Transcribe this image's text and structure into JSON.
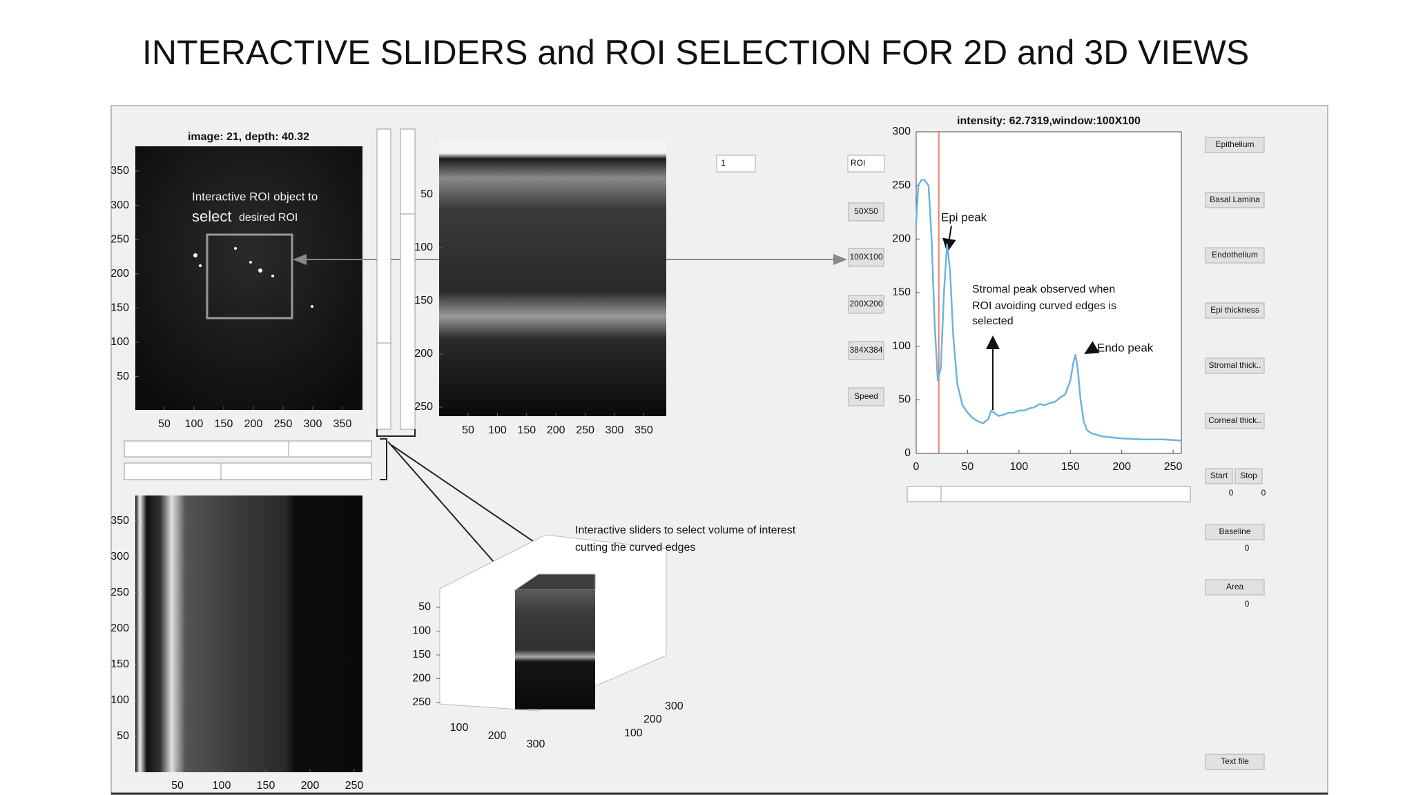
{
  "title": "INTERACTIVE SLIDERS and ROI SELECTION FOR 2D and 3D VIEWS",
  "image_panel": {
    "title": "image: 21, depth: 40.32",
    "yticks": [
      350,
      300,
      250,
      200,
      150,
      100,
      50
    ],
    "xticks": [
      50,
      100,
      150,
      200,
      250,
      300,
      350
    ],
    "roi_label": "Interactive ROI object to",
    "roi_label_big": "select",
    "roi_label_rest": "desired ROI"
  },
  "slice_panel": {
    "yticks": [
      50,
      100,
      150,
      200,
      250
    ],
    "xticks": [
      50,
      100,
      150,
      200,
      250,
      300,
      350
    ]
  },
  "side_panel": {
    "yticks": [
      350,
      300,
      250,
      200,
      150,
      100,
      50
    ],
    "xticks": [
      50,
      100,
      150,
      200,
      250
    ]
  },
  "volume_panel": {
    "annotation": [
      "Interactive sliders to select volume of interest",
      "cutting the curved edges"
    ],
    "zticks": [
      50,
      100,
      150,
      200,
      250
    ],
    "xticks": [
      100,
      200,
      300
    ],
    "yticks": [
      100,
      200,
      300
    ]
  },
  "controls": {
    "dropdown": "1",
    "roi_dropdown": "ROI",
    "buttons": [
      "50X50",
      "100X100",
      "200X200",
      "384X384",
      "Speed"
    ]
  },
  "side_buttons": {
    "layers": [
      "Epithelium",
      "Basal Lamina",
      "Endothelium",
      "Epi thickness",
      "Stromal thick..",
      "Corneal thick.."
    ],
    "start": "Start",
    "stop": "Stop",
    "start_value": 0,
    "stop_value": 0,
    "baseline": "Baseline",
    "baseline_value": 0,
    "area": "Area",
    "area_value": 0,
    "text_file": "Text file"
  },
  "chart_data": {
    "type": "line",
    "title": "intensity: 62.7319,window:100X100",
    "x": [
      0,
      2,
      5,
      8,
      12,
      15,
      18,
      21,
      24,
      27,
      30,
      33,
      36,
      40,
      45,
      50,
      55,
      60,
      65,
      70,
      73,
      76,
      80,
      85,
      90,
      95,
      100,
      105,
      110,
      115,
      120,
      125,
      130,
      135,
      140,
      145,
      150,
      153,
      155,
      157,
      160,
      163,
      166,
      170,
      180,
      190,
      200,
      220,
      240,
      258
    ],
    "values": [
      215,
      250,
      255,
      255,
      250,
      200,
      120,
      68,
      80,
      150,
      195,
      170,
      110,
      65,
      45,
      38,
      33,
      30,
      28,
      32,
      40,
      38,
      35,
      36,
      38,
      38,
      40,
      40,
      42,
      43,
      46,
      45,
      47,
      48,
      52,
      55,
      68,
      85,
      92,
      80,
      50,
      30,
      22,
      19,
      16,
      15,
      14,
      13,
      13,
      12
    ],
    "color": "#6db3e0",
    "marker_x": 22,
    "marker_color": "#e8826a",
    "xlim": [
      0,
      258
    ],
    "ylim": [
      0,
      300
    ],
    "xticks": [
      0,
      50,
      100,
      150,
      200,
      250
    ],
    "yticks": [
      0,
      50,
      100,
      150,
      200,
      250,
      300
    ],
    "annotations": {
      "epi": "Epi peak",
      "stromal": [
        "Stromal peak observed when",
        "ROI avoiding curved edges is",
        "selected"
      ],
      "endo": "Endo peak"
    }
  }
}
